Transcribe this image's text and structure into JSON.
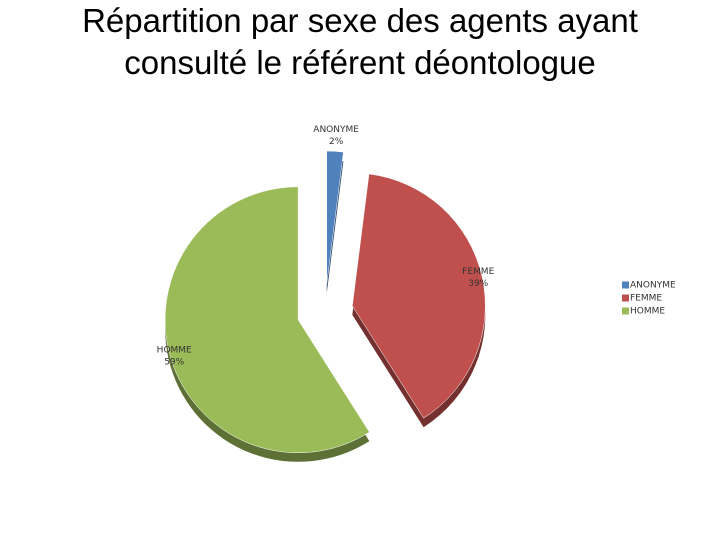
{
  "chart_data": {
    "type": "pie",
    "title": "Répartition par sexe des agents ayant consulté le référent déontologue",
    "categories": [
      "ANONYME",
      "FEMME",
      "HOMME"
    ],
    "values": [
      2,
      39,
      59
    ],
    "value_labels": [
      "2%",
      "39%",
      "59%"
    ],
    "colors": [
      "#4f81bd",
      "#c0504d",
      "#9bbb59"
    ],
    "legend": "right"
  }
}
